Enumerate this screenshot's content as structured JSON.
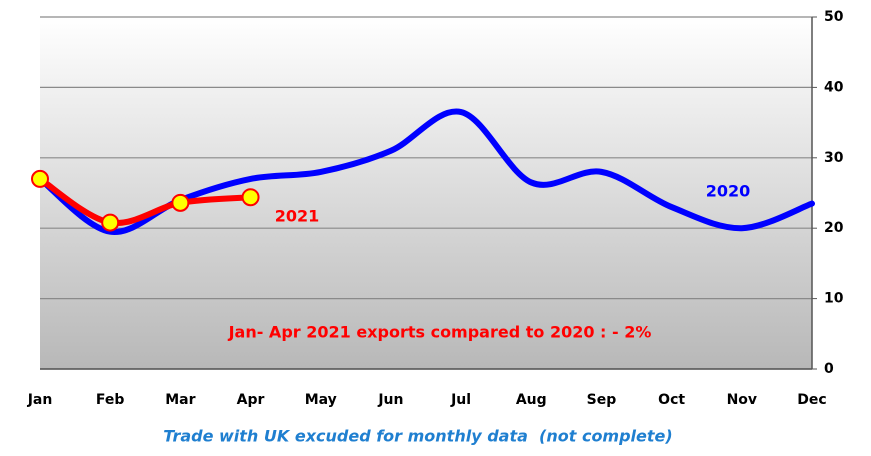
{
  "chart_data": {
    "type": "line",
    "categories": [
      "Jan",
      "Feb",
      "Mar",
      "Apr",
      "May",
      "Jun",
      "Jul",
      "Aug",
      "Sep",
      "Oct",
      "Nov",
      "Dec"
    ],
    "series": [
      {
        "name": "2020",
        "color": "#0000ff",
        "values": [
          27,
          19.5,
          24,
          27,
          28,
          31,
          36.5,
          26.5,
          28,
          23,
          20,
          23.5
        ]
      },
      {
        "name": "2021",
        "color": "#ff0000",
        "marker_color": "#ffff00",
        "values": [
          27,
          20.8,
          23.6,
          24.4,
          null,
          null,
          null,
          null,
          null,
          null,
          null,
          null
        ]
      }
    ],
    "ylim": [
      0,
      50
    ],
    "yticks": [
      0,
      10,
      20,
      30,
      40,
      50
    ],
    "grid": true,
    "annotation": "Jan- Apr 2021 exports compared to 2020 : - 2%",
    "subtitle": "Trade with UK excuded for monthly data  (not complete)"
  }
}
